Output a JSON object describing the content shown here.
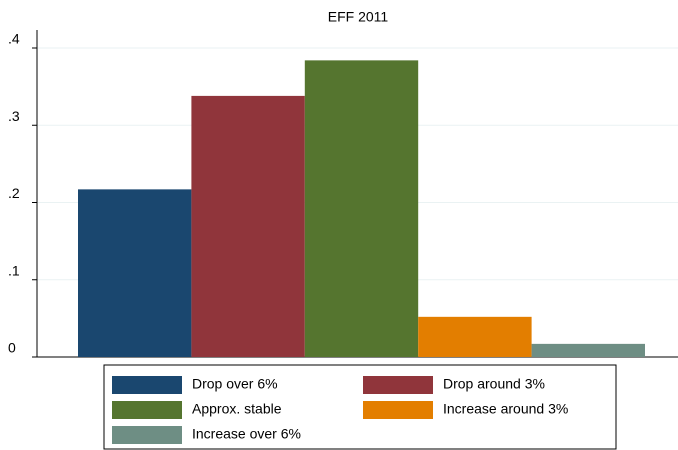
{
  "chart_data": {
    "type": "bar",
    "title": "EFF 2011",
    "categories": [
      null
    ],
    "series": [
      {
        "name": "Drop over 6%",
        "color": "#1a476f",
        "values": [
          0.217
        ]
      },
      {
        "name": "Drop around 3%",
        "color": "#90353b",
        "values": [
          0.338
        ]
      },
      {
        "name": "Approx. stable",
        "color": "#55752f",
        "values": [
          0.384
        ]
      },
      {
        "name": "Increase around 3%",
        "color": "#e37e00",
        "values": [
          0.052
        ]
      },
      {
        "name": "Increase over 6%",
        "color": "#6e8e84",
        "values": [
          0.017
        ]
      }
    ],
    "ylim": [
      0,
      0.4
    ],
    "yticks": [
      0,
      {
        "value": 0.1,
        "label": ".1"
      },
      {
        "value": 0.2,
        "label": ".2"
      },
      {
        "value": 0.3,
        "label": ".3"
      },
      {
        "value": 0.4,
        "label": ".4"
      }
    ],
    "grid": true,
    "legend": "bottom"
  }
}
